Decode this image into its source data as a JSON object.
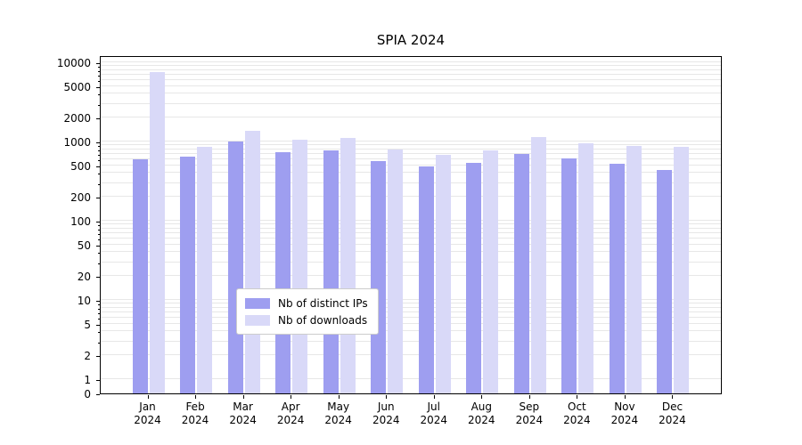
{
  "chart_data": {
    "type": "bar",
    "title": "SPIA 2024",
    "yscale": "symlog",
    "grid": true,
    "legend_position": "lower center",
    "y_ticks": [
      0,
      1,
      2,
      5,
      10,
      20,
      50,
      100,
      200,
      500,
      1000,
      2000,
      5000,
      10000
    ],
    "ylim": [
      0,
      15000
    ],
    "categories": [
      "Jan 2024",
      "Feb 2024",
      "Mar 2024",
      "Apr 2024",
      "May 2024",
      "Jun 2024",
      "Jul 2024",
      "Aug 2024",
      "Sep 2024",
      "Oct 2024",
      "Nov 2024",
      "Dec 2024"
    ],
    "series": [
      {
        "name": "Nb of distinct IPs",
        "color": "#9e9ef0",
        "values": [
          600,
          650,
          1000,
          740,
          770,
          570,
          480,
          540,
          700,
          610,
          520,
          440
        ]
      },
      {
        "name": "Nb of downloads",
        "color": "#d9d9f8",
        "values": [
          7500,
          850,
          1350,
          1050,
          1100,
          800,
          680,
          780,
          1150,
          950,
          870,
          860
        ]
      }
    ]
  }
}
